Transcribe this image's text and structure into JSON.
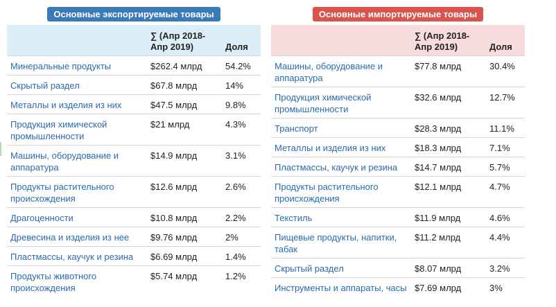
{
  "exports": {
    "title": "Основные экспортируемые товары",
    "header": {
      "sum": "∑ (Апр 2018-Апр 2019)",
      "share": "Доля"
    },
    "rows": [
      {
        "name": "Минеральные продукты",
        "value": "$262.4 млрд",
        "share": "54.2%"
      },
      {
        "name": "Скрытый раздел",
        "value": "$67.8 млрд",
        "share": "14%"
      },
      {
        "name": "Металлы и изделия из них",
        "value": "$47.5 млрд",
        "share": "9.8%"
      },
      {
        "name": "Продукция химической промышленности",
        "value": "$21 млрд",
        "share": "4.3%"
      },
      {
        "name": "Машины, оборудование и аппаратура",
        "value": "$14.9 млрд",
        "share": "3.1%"
      },
      {
        "name": "Продукты растительного происхождения",
        "value": "$12.6 млрд",
        "share": "2.6%"
      },
      {
        "name": "Драгоценности",
        "value": "$10.8 млрд",
        "share": "2.2%"
      },
      {
        "name": "Древесина и изделия из нее",
        "value": "$9.76 млрд",
        "share": "2%"
      },
      {
        "name": "Пластмассы, каучук и резина",
        "value": "$6.69 млрд",
        "share": "1.4%"
      },
      {
        "name": "Продукты животного происхождения",
        "value": "$5.74 млрд",
        "share": "1.2%"
      }
    ]
  },
  "imports": {
    "title": "Основные импортируемые товары",
    "header": {
      "sum": "∑ (Апр 2018-Апр 2019)",
      "share": "Доля"
    },
    "rows": [
      {
        "name": "Машины, оборудование и аппаратура",
        "value": "$77.8 млрд",
        "share": "30.4%"
      },
      {
        "name": "Продукция химической промышленности",
        "value": "$32.6 млрд",
        "share": "12.7%"
      },
      {
        "name": "Транспорт",
        "value": "$28.3 млрд",
        "share": "11.1%"
      },
      {
        "name": "Металлы и изделия из них",
        "value": "$18.3 млрд",
        "share": "7.1%"
      },
      {
        "name": "Пластмассы, каучук и резина",
        "value": "$14.7 млрд",
        "share": "5.7%"
      },
      {
        "name": "Продукты растительного происхождения",
        "value": "$12.1 млрд",
        "share": "4.7%"
      },
      {
        "name": "Текстиль",
        "value": "$11.9 млрд",
        "share": "4.6%"
      },
      {
        "name": "Пищевые продукты, напитки, табак",
        "value": "$11.2 млрд",
        "share": "4.4%"
      },
      {
        "name": "Скрытый раздел",
        "value": "$8.07 млрд",
        "share": "3.2%"
      },
      {
        "name": "Инструменты и аппараты, часы",
        "value": "$7.69 млрд",
        "share": "3%"
      }
    ]
  }
}
